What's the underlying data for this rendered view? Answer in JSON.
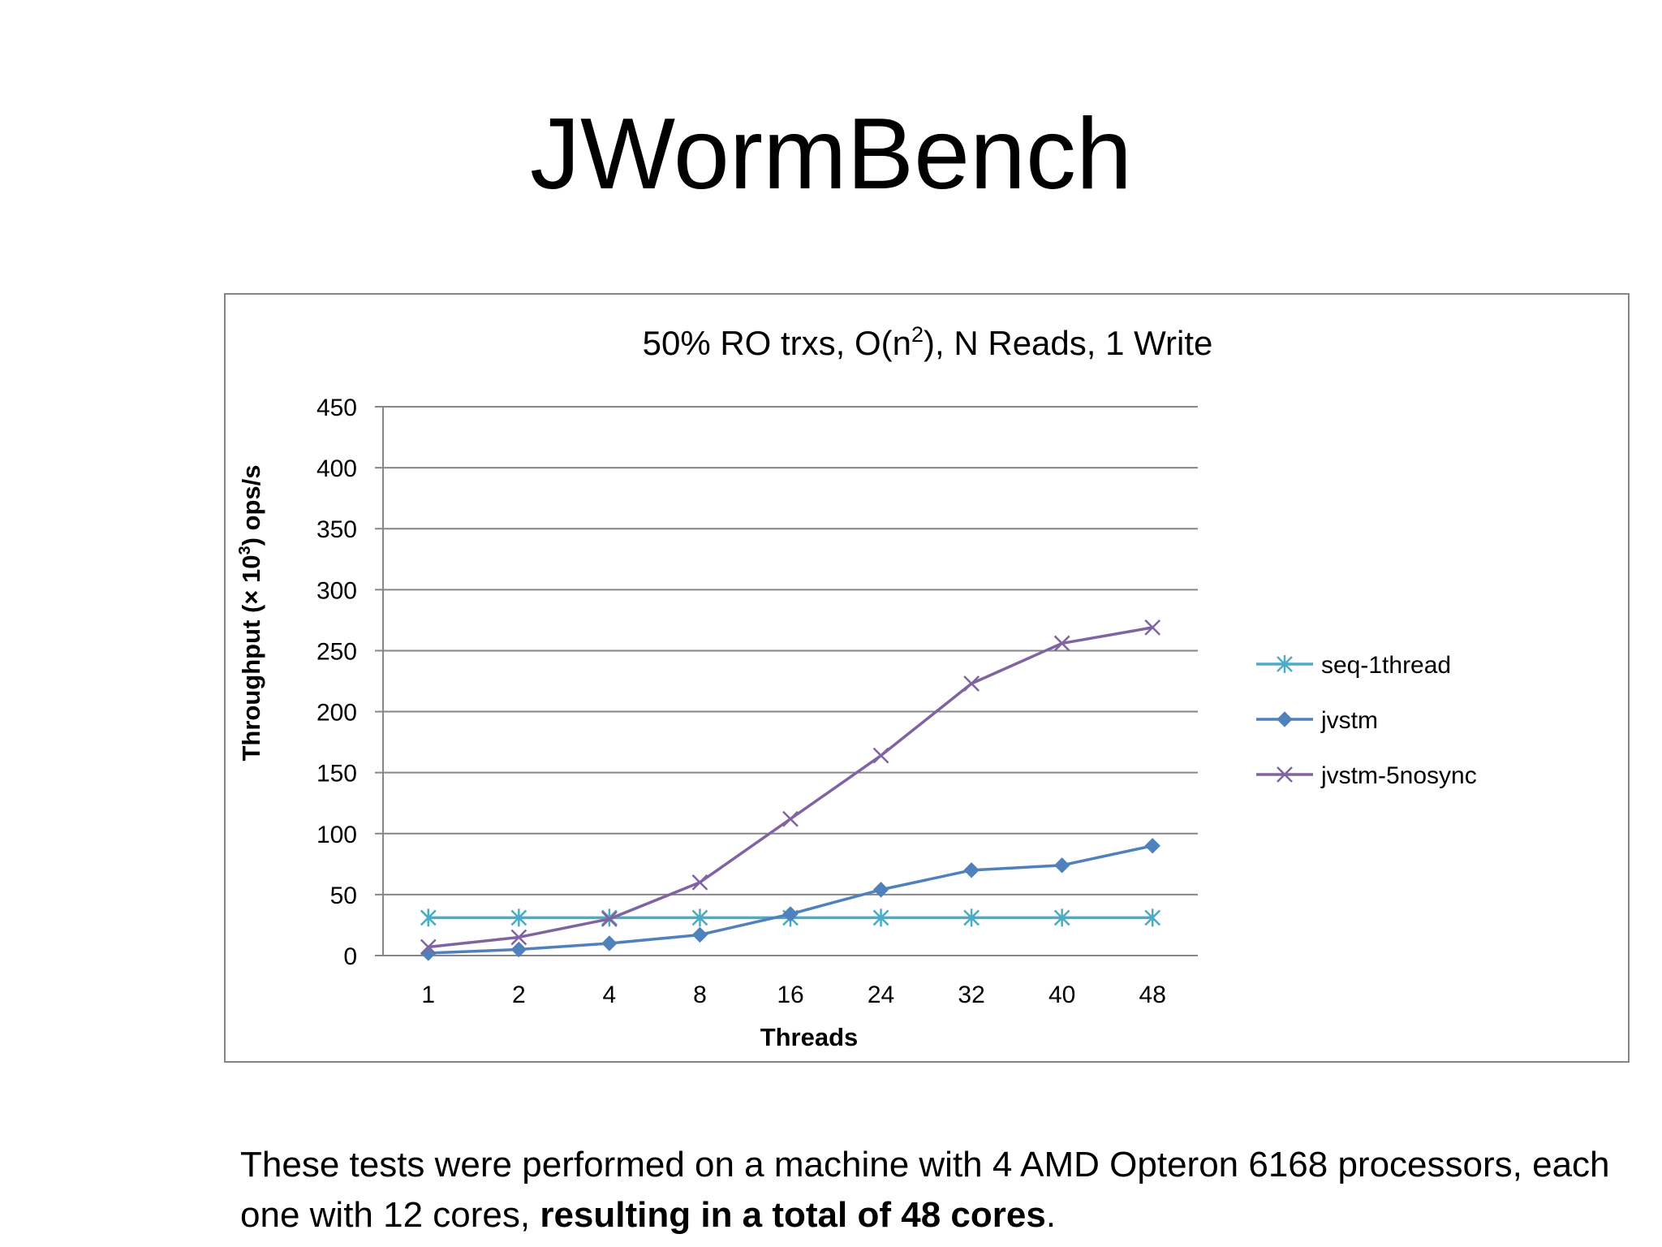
{
  "slide": {
    "title": "JWormBench",
    "caption_normal": "These tests were performed on a machine with 4 AMD Opteron 6168 processors, each one with 12 cores, ",
    "caption_bold": "resulting in a total of 48 cores",
    "caption_end": "."
  },
  "chart_data": {
    "type": "line",
    "title_pre": "50% RO trxs, O(n",
    "title_sup": "2",
    "title_post": "), N Reads, 1 Write",
    "xlabel": "Threads",
    "ylabel_pre": "Throughput (× 10",
    "ylabel_sup": "3",
    "ylabel_post": ") ops/s",
    "categories": [
      "1",
      "2",
      "4",
      "8",
      "16",
      "24",
      "32",
      "40",
      "48"
    ],
    "ylim": [
      0,
      450
    ],
    "yticks": [
      0,
      50,
      100,
      150,
      200,
      250,
      300,
      350,
      400,
      450
    ],
    "grid": true,
    "legend_position": "right",
    "series": [
      {
        "name": "seq-1thread",
        "color": "#4bacc6",
        "marker": "asterisk",
        "values": [
          31,
          31,
          31,
          31,
          31,
          31,
          31,
          31,
          31
        ]
      },
      {
        "name": "jvstm",
        "color": "#4f81bd",
        "marker": "diamond",
        "values": [
          2,
          5,
          10,
          17,
          34,
          54,
          70,
          74,
          90
        ]
      },
      {
        "name": "jvstm-5nosync",
        "color": "#8064a2",
        "marker": "x",
        "values": [
          7,
          15,
          30,
          60,
          112,
          164,
          223,
          256,
          269
        ]
      }
    ]
  }
}
